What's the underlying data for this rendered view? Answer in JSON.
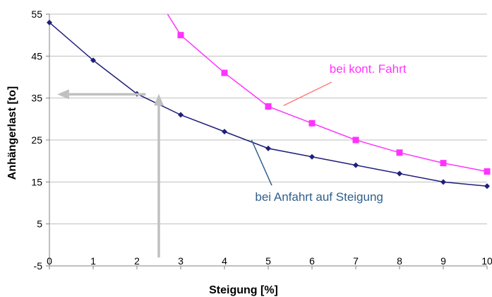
{
  "chart_data": {
    "type": "line",
    "xlabel": "Steigung [%]",
    "ylabel": "Anhängerlast [to]",
    "xlim": [
      0,
      10
    ],
    "ylim": [
      -5,
      55
    ],
    "x_ticks": [
      "0",
      "1",
      "2",
      "3",
      "4",
      "5",
      "6",
      "7",
      "8",
      "9",
      "10"
    ],
    "y_ticks": [
      "55",
      "45",
      "35",
      "25",
      "15",
      "5",
      "-5"
    ],
    "grid": "horizontal",
    "series": [
      {
        "key": "anfahrt",
        "color": "#1f1f7a",
        "marker": "diamond",
        "x": [
          0,
          1,
          2,
          3,
          4,
          5,
          6,
          7,
          8,
          9,
          10
        ],
        "y": [
          53,
          44,
          36,
          31,
          27,
          23,
          21,
          19,
          17,
          15,
          14
        ]
      },
      {
        "key": "fahrt",
        "color": "#ff33ff",
        "marker": "square",
        "x": [
          3,
          4,
          5,
          6,
          7,
          8,
          9,
          10
        ],
        "y": [
          50,
          41,
          33,
          29,
          25,
          22,
          19.5,
          17.5
        ],
        "line_start": [
          2.7,
          55
        ]
      }
    ],
    "annotations": [
      {
        "name": "fahrt-label",
        "text": "bei kont. Fahrt",
        "color": "#ff33ff"
      },
      {
        "name": "anfahrt-label",
        "text": "bei Anfahrt auf Steigung",
        "color": "#2f5f8a"
      }
    ],
    "arrows_color": "#c0c0c0"
  }
}
